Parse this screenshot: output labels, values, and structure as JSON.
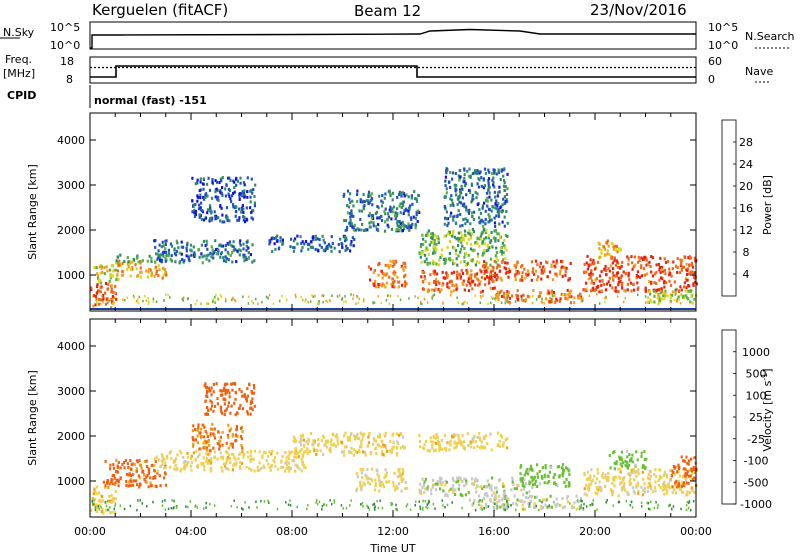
{
  "header": {
    "station": "Kerguelen (fitACF)",
    "beam": "Beam 12",
    "date": "23/Nov/2016"
  },
  "top_panels": {
    "nsky_label": "N.Sky",
    "nsky_ticks": [
      "10^5",
      "10^0"
    ],
    "nsearch_label": "N.Search",
    "nsearch_ticks": [
      "10^5",
      "10^0"
    ],
    "freq_label": "Freq.",
    "freq_unit": "[MHz]",
    "freq_ticks": [
      "18",
      "8"
    ],
    "nave_label": "Nave",
    "nave_ticks": [
      "60",
      "0"
    ],
    "cpid_label": "CPID",
    "cpid_text": "normal (fast) -151"
  },
  "x_axis": {
    "title": "Time UT",
    "ticks": [
      "00:00",
      "04:00",
      "08:00",
      "12:00",
      "16:00",
      "20:00",
      "00:00"
    ]
  },
  "colors": {
    "power": [
      "#1010e0",
      "#2050c0",
      "#2e8c6a",
      "#58b040",
      "#d8d820",
      "#f0a020",
      "#f06818",
      "#e82010"
    ],
    "velocity": [
      "#e01010",
      "#f06010",
      "#f0a010",
      "#f0d050",
      "#c8c8c8",
      "#68c030",
      "#2a8a40",
      "#2050c0"
    ]
  },
  "chart_data": [
    {
      "type": "heatmap",
      "panel": "power",
      "ylabel": "Slant Range [km]",
      "yticks": [
        "1000",
        "2000",
        "3000",
        "4000"
      ],
      "ylim": [
        200,
        4600
      ],
      "xlim_hours": [
        0,
        24
      ],
      "colorbar_label": "Power [dB]",
      "colorbar_ticks": [
        "4",
        "8",
        "12",
        "16",
        "20",
        "24",
        "28"
      ],
      "colorbar_range": [
        0,
        32
      ],
      "regions": [
        {
          "t0": 0.0,
          "t1": 1.0,
          "r0": 300,
          "r1": 900,
          "value": 27
        },
        {
          "t0": 0.0,
          "t1": 1.1,
          "r0": 850,
          "r1": 1250,
          "value": 17
        },
        {
          "t0": 1.0,
          "t1": 3.0,
          "r0": 950,
          "r1": 1350,
          "value": 22
        },
        {
          "t0": 1.0,
          "t1": 3.2,
          "r0": 1300,
          "r1": 1500,
          "value": 12
        },
        {
          "t0": 2.5,
          "t1": 6.5,
          "r0": 1300,
          "r1": 1800,
          "value": 8
        },
        {
          "t0": 4.0,
          "t1": 6.5,
          "r0": 2200,
          "r1": 3200,
          "value": 6
        },
        {
          "t0": 7.0,
          "t1": 10.5,
          "r0": 1550,
          "r1": 1900,
          "value": 7
        },
        {
          "t0": 10.0,
          "t1": 13.0,
          "r0": 2000,
          "r1": 2900,
          "value": 8
        },
        {
          "t0": 11.0,
          "t1": 12.5,
          "r0": 750,
          "r1": 1350,
          "value": 25
        },
        {
          "t0": 13.0,
          "t1": 16.5,
          "r0": 1250,
          "r1": 2050,
          "value": 14
        },
        {
          "t0": 13.0,
          "t1": 16.0,
          "r0": 650,
          "r1": 1150,
          "value": 27
        },
        {
          "t0": 14.0,
          "t1": 16.5,
          "r0": 2100,
          "r1": 3400,
          "value": 8
        },
        {
          "t0": 15.5,
          "t1": 19.0,
          "r0": 900,
          "r1": 1350,
          "value": 26
        },
        {
          "t0": 16.0,
          "t1": 19.5,
          "r0": 400,
          "r1": 700,
          "value": 25
        },
        {
          "t0": 19.5,
          "t1": 24.0,
          "r0": 650,
          "r1": 1450,
          "value": 28
        },
        {
          "t0": 20.0,
          "t1": 21.0,
          "r0": 1400,
          "r1": 1800,
          "value": 22
        },
        {
          "t0": 22.0,
          "t1": 24.0,
          "r0": 400,
          "r1": 700,
          "value": 16
        }
      ]
    },
    {
      "type": "heatmap",
      "panel": "velocity",
      "ylabel": "Slant Range [km]",
      "yticks": [
        "1000",
        "2000",
        "3000",
        "4000"
      ],
      "ylim": [
        200,
        4600
      ],
      "xlim_hours": [
        0,
        24
      ],
      "colorbar_label": "Velocity [m s",
      "colorbar_label_sup": "-1",
      "colorbar_label_end": "]",
      "colorbar_ticks": [
        "1000",
        "500",
        "100",
        "25",
        "-25",
        "-100",
        "-500",
        "-1000"
      ],
      "regions": [
        {
          "t0": 0.0,
          "t1": 1.0,
          "r0": 300,
          "r1": 900,
          "value": -5
        },
        {
          "t0": 0.5,
          "t1": 3.0,
          "r0": 900,
          "r1": 1500,
          "value": -200
        },
        {
          "t0": 2.5,
          "t1": 8.5,
          "r0": 1250,
          "r1": 1700,
          "value": 0
        },
        {
          "t0": 4.5,
          "t1": 6.5,
          "r0": 2500,
          "r1": 3200,
          "value": -300
        },
        {
          "t0": 4.0,
          "t1": 6.0,
          "r0": 1700,
          "r1": 2300,
          "value": -120
        },
        {
          "t0": 8.0,
          "t1": 12.5,
          "r0": 1600,
          "r1": 2100,
          "value": 0
        },
        {
          "t0": 10.5,
          "t1": 12.5,
          "r0": 800,
          "r1": 1300,
          "value": 5
        },
        {
          "t0": 13.0,
          "t1": 16.5,
          "r0": 1700,
          "r1": 2100,
          "value": 0
        },
        {
          "t0": 13.0,
          "t1": 17.5,
          "r0": 700,
          "r1": 1100,
          "value": 60
        },
        {
          "t0": 15.0,
          "t1": 19.5,
          "r0": 400,
          "r1": 700,
          "value": 60
        },
        {
          "t0": 17.0,
          "t1": 19.0,
          "r0": 900,
          "r1": 1400,
          "value": 200
        },
        {
          "t0": 19.5,
          "t1": 24.0,
          "r0": 700,
          "r1": 1300,
          "value": 5
        },
        {
          "t0": 20.5,
          "t1": 22.0,
          "r0": 1300,
          "r1": 1700,
          "value": 200
        },
        {
          "t0": 23.0,
          "t1": 24.0,
          "r0": 900,
          "r1": 1600,
          "value": -300
        }
      ]
    }
  ]
}
